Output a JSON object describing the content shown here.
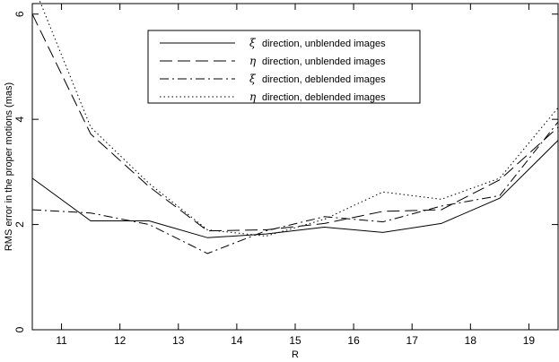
{
  "chart_data": {
    "type": "line",
    "xlabel": "R",
    "ylabel": "RMS error in the proper motions (mas)",
    "xlim": [
      10.5,
      19.5
    ],
    "ylim": [
      0,
      6.2
    ],
    "x_ticks": [
      11,
      12,
      13,
      14,
      15,
      16,
      17,
      18,
      19
    ],
    "y_ticks": [
      0,
      2,
      4,
      6
    ],
    "grid": false,
    "legend_position": "top-center",
    "series": [
      {
        "symbol": "ξ",
        "name": "direction, unblended images",
        "style": "solid",
        "x": [
          10.5,
          11.5,
          12.5,
          13.5,
          14.5,
          15.5,
          16.5,
          17.5,
          18.5,
          19.5
        ],
        "values": [
          2.88,
          2.07,
          2.07,
          1.75,
          1.82,
          1.95,
          1.85,
          2.02,
          2.5,
          3.6
        ]
      },
      {
        "symbol": "η",
        "name": "direction, unblended images",
        "style": "dashed",
        "x": [
          10.5,
          11.5,
          12.5,
          13.5,
          14.5,
          15.5,
          16.5,
          17.5,
          18.5,
          19.5
        ],
        "values": [
          6.0,
          3.72,
          2.72,
          1.88,
          1.9,
          2.02,
          2.25,
          2.28,
          2.85,
          3.85
        ]
      },
      {
        "symbol": "ξ",
        "name": "direction, deblended images",
        "style": "dashdot",
        "x": [
          10.5,
          11.5,
          12.5,
          13.5,
          14.5,
          15.5,
          16.5,
          17.5,
          18.5,
          19.5
        ],
        "values": [
          2.28,
          2.22,
          2.0,
          1.45,
          1.88,
          2.15,
          2.05,
          2.35,
          2.55,
          3.95
        ]
      },
      {
        "symbol": "η",
        "name": "direction, deblended images",
        "style": "dotted",
        "x": [
          10.5,
          11.5,
          12.5,
          13.5,
          14.5,
          15.5,
          16.5,
          17.5,
          18.5,
          19.5
        ],
        "values": [
          6.6,
          3.85,
          2.78,
          1.9,
          1.78,
          2.1,
          2.62,
          2.48,
          2.88,
          4.22
        ]
      }
    ]
  }
}
